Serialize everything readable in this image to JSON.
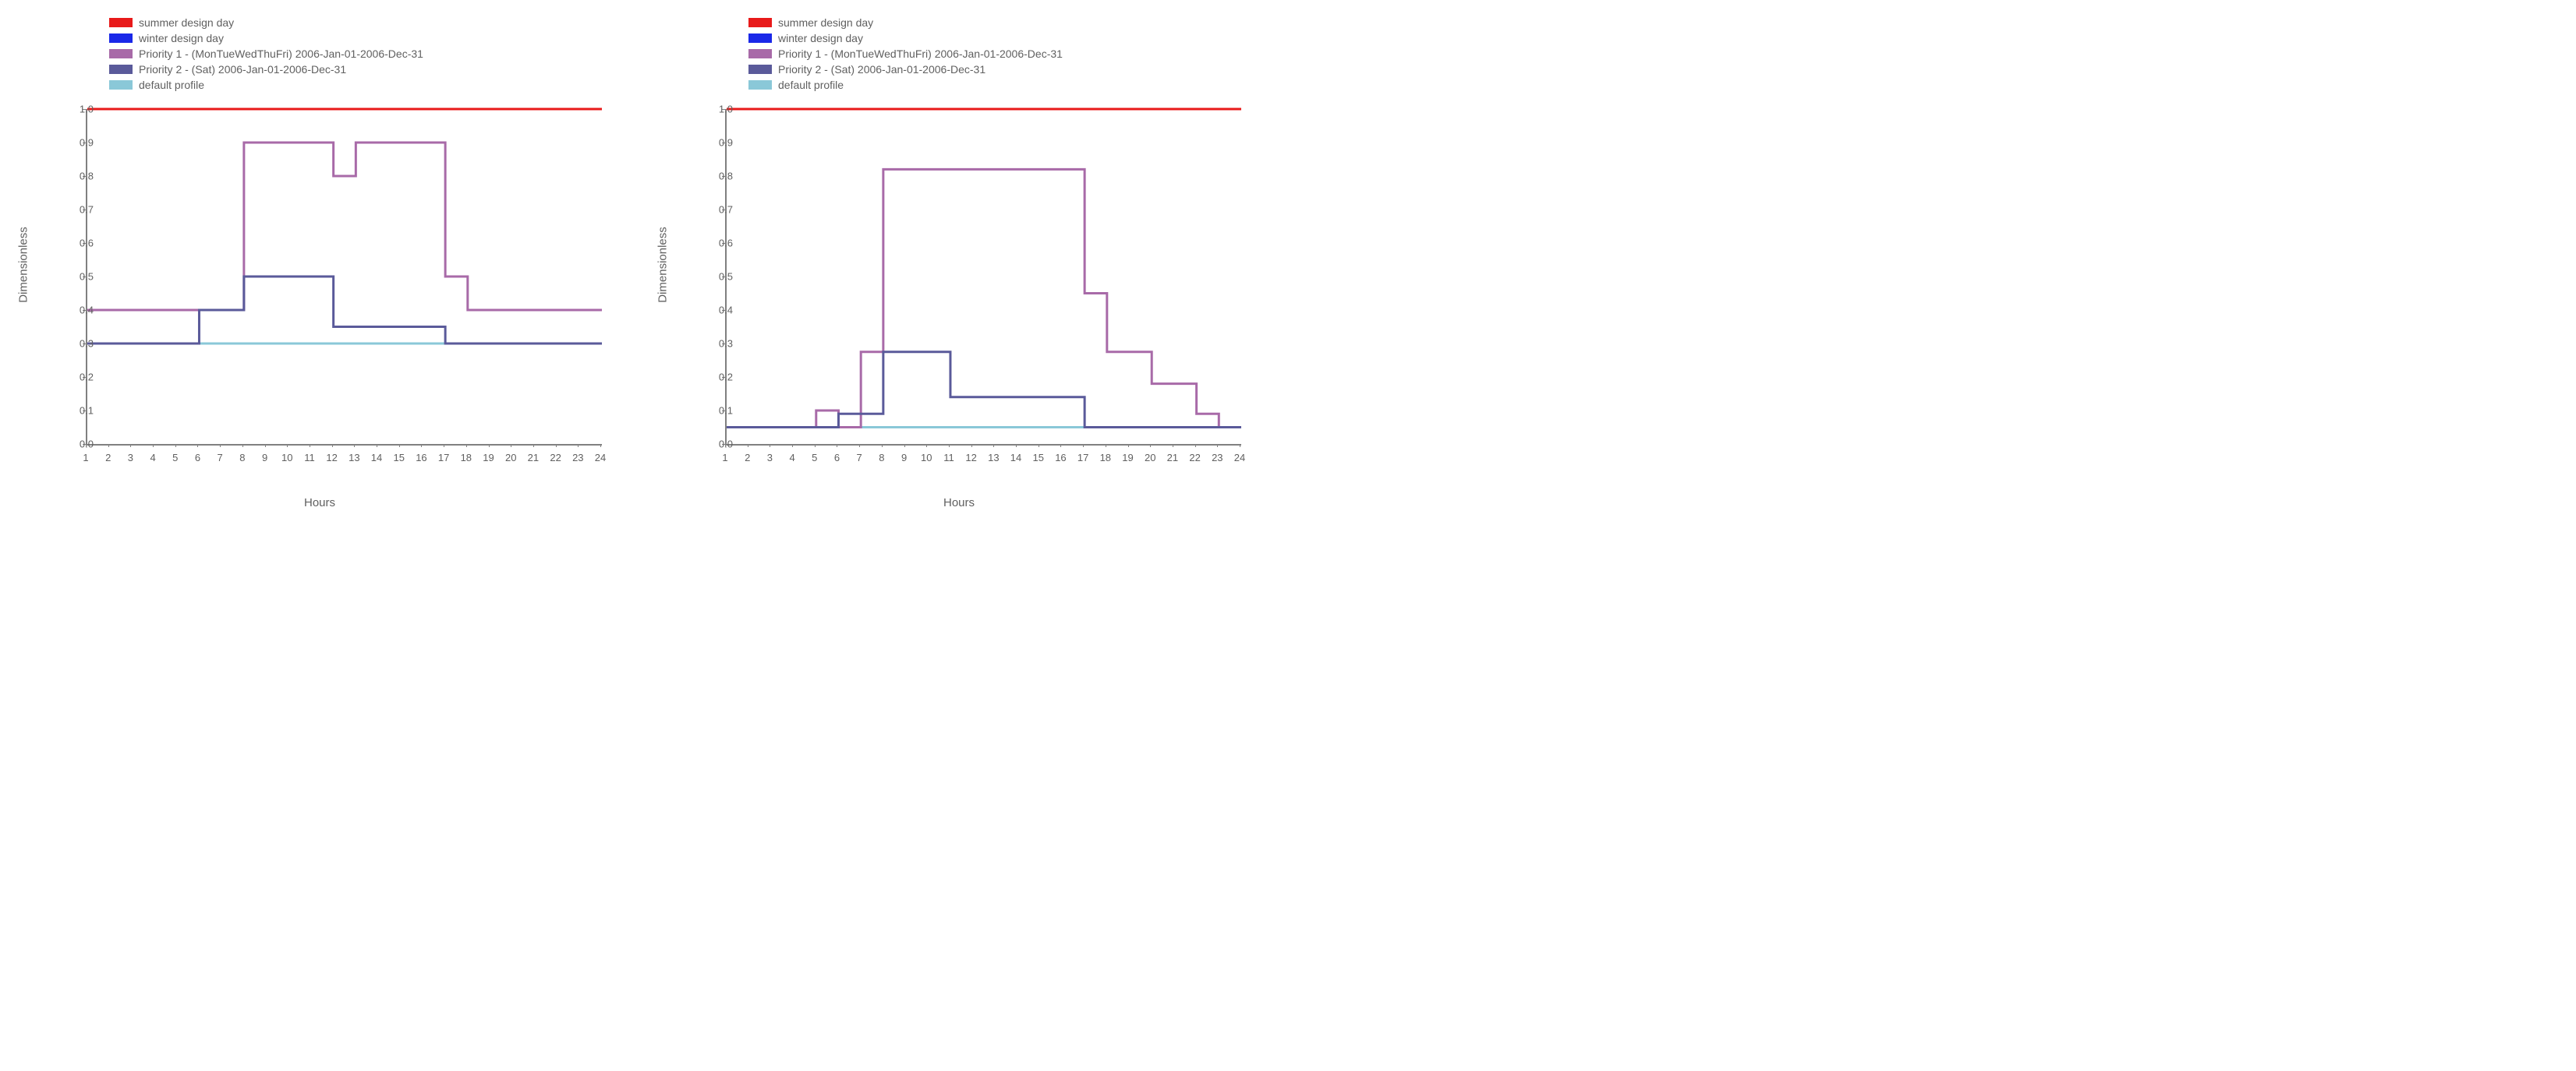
{
  "axis": {
    "xlabel": "Hours",
    "ylabel": "Dimensionless",
    "xlim": [
      1,
      24
    ],
    "ylim": [
      0.0,
      1.0
    ],
    "yticks": [
      0.0,
      0.1,
      0.2,
      0.3,
      0.4,
      0.5,
      0.6,
      0.7,
      0.8,
      0.9,
      1.0
    ],
    "ytick_labels": [
      "0.0",
      "0.1",
      "0.2",
      "0.3",
      "0.4",
      "0.5",
      "0.6",
      "0.7",
      "0.8",
      "0.9",
      "1.0"
    ],
    "xticks": [
      1,
      2,
      3,
      4,
      5,
      6,
      7,
      8,
      9,
      10,
      11,
      12,
      13,
      14,
      15,
      16,
      17,
      18,
      19,
      20,
      21,
      22,
      23,
      24
    ],
    "axis_color": "#808080",
    "tick_fontsize": 13,
    "label_fontsize": 15,
    "label_color": "#606060"
  },
  "legend": {
    "items": [
      {
        "label": "summer design day",
        "color": "#e81a1a"
      },
      {
        "label": "winter design day",
        "color": "#1a28e8"
      },
      {
        "label": "Priority 1 - (MonTueWedThuFri) 2006-Jan-01-2006-Dec-31",
        "color": "#a86aa8"
      },
      {
        "label": "Priority 2 - (Sat) 2006-Jan-01-2006-Dec-31",
        "color": "#5a5a9a"
      },
      {
        "label": "default profile",
        "color": "#8ac8d8"
      }
    ],
    "fontsize": 14,
    "text_color": "#606060"
  },
  "line_width": 3,
  "charts": [
    {
      "series": [
        {
          "name": "summer",
          "color": "#e81a1a",
          "points": [
            [
              1,
              1.0
            ],
            [
              24,
              1.0
            ]
          ]
        },
        {
          "name": "winter",
          "color": "#1a28e8",
          "points": [
            [
              1,
              0.3
            ],
            [
              24,
              0.3
            ]
          ]
        },
        {
          "name": "default",
          "color": "#8ac8d8",
          "points": [
            [
              1,
              0.3
            ],
            [
              24,
              0.3
            ]
          ]
        },
        {
          "name": "priority1",
          "color": "#a86aa8",
          "points": [
            [
              1,
              0.4
            ],
            [
              8,
              0.4
            ],
            [
              8,
              0.9
            ],
            [
              12,
              0.9
            ],
            [
              12,
              0.8
            ],
            [
              13,
              0.8
            ],
            [
              13,
              0.9
            ],
            [
              17,
              0.9
            ],
            [
              17,
              0.5
            ],
            [
              18,
              0.5
            ],
            [
              18,
              0.4
            ],
            [
              24,
              0.4
            ]
          ]
        },
        {
          "name": "priority2",
          "color": "#5a5a9a",
          "points": [
            [
              1,
              0.3
            ],
            [
              6,
              0.3
            ],
            [
              6,
              0.4
            ],
            [
              8,
              0.4
            ],
            [
              8,
              0.5
            ],
            [
              12,
              0.5
            ],
            [
              12,
              0.35
            ],
            [
              17,
              0.35
            ],
            [
              17,
              0.3
            ],
            [
              24,
              0.3
            ]
          ]
        }
      ]
    },
    {
      "series": [
        {
          "name": "summer",
          "color": "#e81a1a",
          "points": [
            [
              1,
              1.0
            ],
            [
              24,
              1.0
            ]
          ]
        },
        {
          "name": "winter",
          "color": "#1a28e8",
          "points": [
            [
              1,
              0.05
            ],
            [
              24,
              0.05
            ]
          ]
        },
        {
          "name": "default",
          "color": "#8ac8d8",
          "points": [
            [
              1,
              0.05
            ],
            [
              24,
              0.05
            ]
          ]
        },
        {
          "name": "priority1",
          "color": "#a86aa8",
          "points": [
            [
              1,
              0.05
            ],
            [
              5,
              0.05
            ],
            [
              5,
              0.1
            ],
            [
              6,
              0.1
            ],
            [
              6,
              0.05
            ],
            [
              7,
              0.05
            ],
            [
              7,
              0.275
            ],
            [
              8,
              0.275
            ],
            [
              8,
              0.82
            ],
            [
              17,
              0.82
            ],
            [
              17,
              0.45
            ],
            [
              18,
              0.45
            ],
            [
              18,
              0.275
            ],
            [
              20,
              0.275
            ],
            [
              20,
              0.18
            ],
            [
              22,
              0.18
            ],
            [
              22,
              0.09
            ],
            [
              23,
              0.09
            ],
            [
              23,
              0.05
            ],
            [
              24,
              0.05
            ]
          ]
        },
        {
          "name": "priority2",
          "color": "#5a5a9a",
          "points": [
            [
              1,
              0.05
            ],
            [
              6,
              0.05
            ],
            [
              6,
              0.09
            ],
            [
              8,
              0.09
            ],
            [
              8,
              0.275
            ],
            [
              11,
              0.275
            ],
            [
              11,
              0.14
            ],
            [
              17,
              0.14
            ],
            [
              17,
              0.05
            ],
            [
              24,
              0.05
            ]
          ]
        }
      ]
    }
  ]
}
